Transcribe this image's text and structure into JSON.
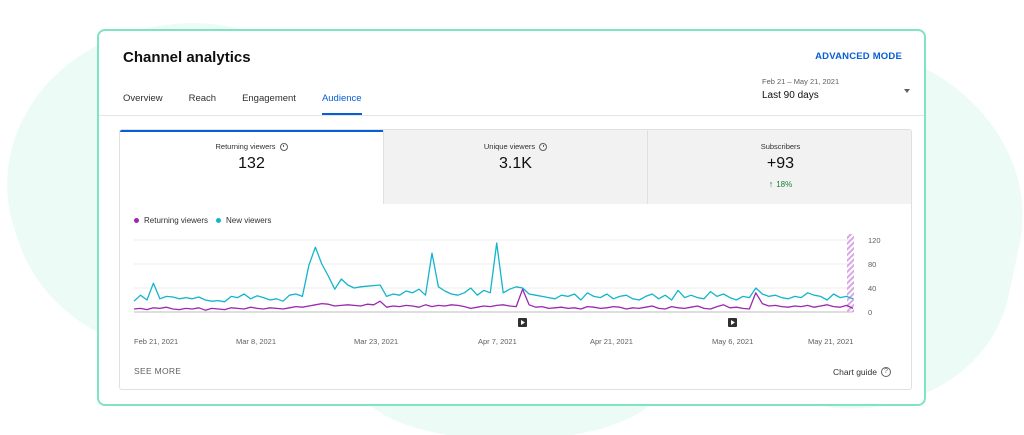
{
  "header": {
    "title": "Channel analytics",
    "advanced_mode": "ADVANCED MODE"
  },
  "tabs": [
    {
      "label": "Overview",
      "active": false
    },
    {
      "label": "Reach",
      "active": false
    },
    {
      "label": "Engagement",
      "active": false
    },
    {
      "label": "Audience",
      "active": true
    }
  ],
  "date_range": {
    "sub": "Feb 21 – May 21, 2021",
    "main": "Last 90 days"
  },
  "metrics": [
    {
      "label": "Returning viewers",
      "value": "132",
      "selected": true
    },
    {
      "label": "Unique viewers",
      "value": "3.1K",
      "selected": false
    },
    {
      "label": "Subscribers",
      "value": "+93",
      "delta": "18%",
      "selected": false
    }
  ],
  "footer": {
    "see_more": "SEE MORE",
    "chart_guide": "Chart guide"
  },
  "colors": {
    "accent": "#065fd4",
    "returning": "#9c27b0",
    "new": "#12b5cb",
    "positive": "#188038"
  },
  "chart_data": {
    "type": "line",
    "x_labels": [
      "Feb 21, 2021",
      "Mar 8, 2021",
      "Mar 23, 2021",
      "Apr 7, 2021",
      "Apr 21, 2021",
      "May 6, 2021",
      "May 21, 2021"
    ],
    "y_ticks": [
      0,
      40,
      80,
      120
    ],
    "ylim": [
      0,
      120
    ],
    "series": [
      {
        "name": "Returning viewers",
        "values": [
          5,
          6,
          4,
          7,
          6,
          8,
          5,
          4,
          6,
          5,
          7,
          3,
          6,
          5,
          4,
          7,
          6,
          5,
          8,
          6,
          5,
          7,
          6,
          5,
          7,
          9,
          8,
          10,
          12,
          14,
          13,
          10,
          11,
          12,
          11,
          10,
          13,
          12,
          18,
          8,
          10,
          9,
          11,
          10,
          8,
          12,
          9,
          11,
          10,
          12,
          11,
          9,
          6,
          8,
          10,
          9,
          11,
          12,
          10,
          9,
          38,
          12,
          8,
          9,
          6,
          7,
          8,
          6,
          7,
          5,
          9,
          8,
          6,
          7,
          9,
          8,
          5,
          7,
          6,
          8,
          10,
          6,
          5,
          9,
          7,
          6,
          8,
          10,
          6,
          5,
          9,
          12,
          7,
          8,
          6,
          5,
          32,
          14,
          10,
          11,
          9,
          8,
          10,
          9,
          11,
          8,
          10,
          12,
          9,
          8,
          11,
          6
        ],
        "color": "#9c27b0"
      },
      {
        "name": "New viewers",
        "values": [
          18,
          28,
          20,
          48,
          22,
          26,
          25,
          22,
          24,
          22,
          25,
          20,
          18,
          19,
          17,
          26,
          24,
          30,
          22,
          27,
          24,
          20,
          22,
          18,
          28,
          30,
          26,
          78,
          108,
          80,
          60,
          38,
          55,
          45,
          40,
          42,
          43,
          44,
          45,
          26,
          30,
          28,
          35,
          32,
          38,
          28,
          98,
          42,
          35,
          30,
          28,
          32,
          40,
          28,
          36,
          32,
          115,
          32,
          38,
          42,
          40,
          30,
          28,
          26,
          24,
          22,
          28,
          26,
          30,
          20,
          32,
          26,
          24,
          30,
          22,
          26,
          28,
          22,
          20,
          26,
          30,
          22,
          28,
          20,
          36,
          24,
          28,
          24,
          22,
          34,
          26,
          30,
          24,
          20,
          26,
          24,
          40,
          30,
          26,
          28,
          24,
          22,
          26,
          24,
          32,
          28,
          26,
          20,
          30,
          24,
          26,
          22
        ],
        "color": "#12b5cb"
      }
    ],
    "legend": "top-left",
    "grid": true
  }
}
